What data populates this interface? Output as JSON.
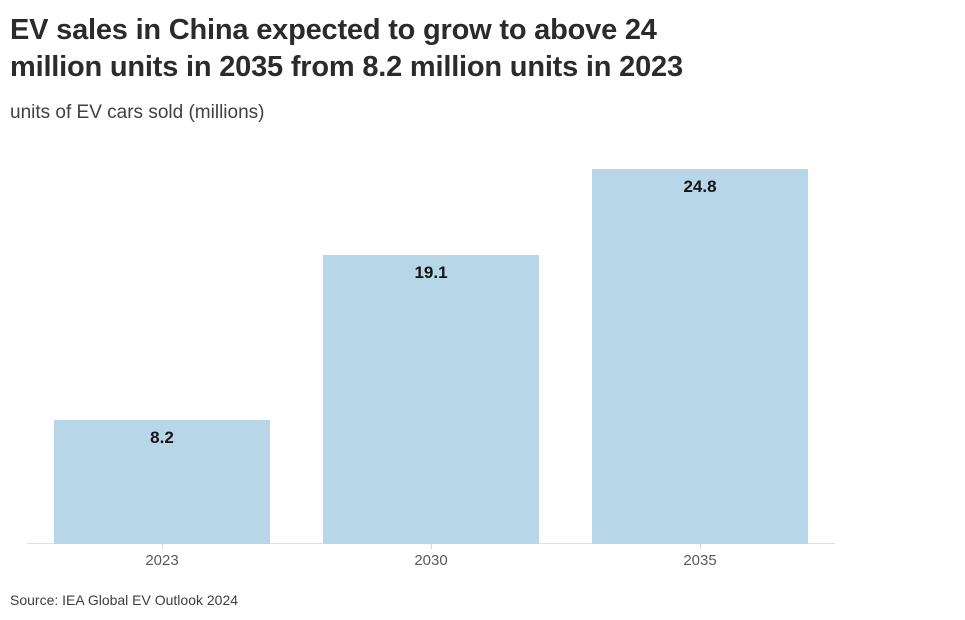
{
  "title": {
    "line1": "EV sales in China expected to grow to above 24",
    "line2": "million units in 2035 from 8.2 million units in 2023",
    "full": "EV sales in China expected to grow to above 24 million units in 2035 from 8.2 million units in 2023"
  },
  "subtitle": "units of EV cars sold (millions)",
  "source": "Source: IEA Global EV Outlook 2024",
  "colors": {
    "bar": "#b7d6e8",
    "title": "#2b2b2b",
    "subtitle": "#404040",
    "value_label": "#141414",
    "tick_label": "#595959",
    "axis_line": "#e0e0e0",
    "background": "#ffffff"
  },
  "chart_data": {
    "type": "bar",
    "categories": [
      "2023",
      "2030",
      "2035"
    ],
    "values": [
      8.2,
      19.1,
      24.8
    ],
    "value_labels": [
      "8.2",
      "19.1",
      "24.8"
    ],
    "title": "EV sales in China expected to grow to above 24 million units in 2035 from 8.2 million units in 2023",
    "subtitle": "units of EV cars sold (millions)",
    "xlabel": "",
    "ylabel": "units of EV cars sold (millions)",
    "ylim": [
      0,
      26
    ],
    "grid": false,
    "legend": false,
    "bar_color": "#b7d6e8",
    "value_labels_position": "inside-top",
    "source": "Source: IEA Global EV Outlook 2024"
  }
}
